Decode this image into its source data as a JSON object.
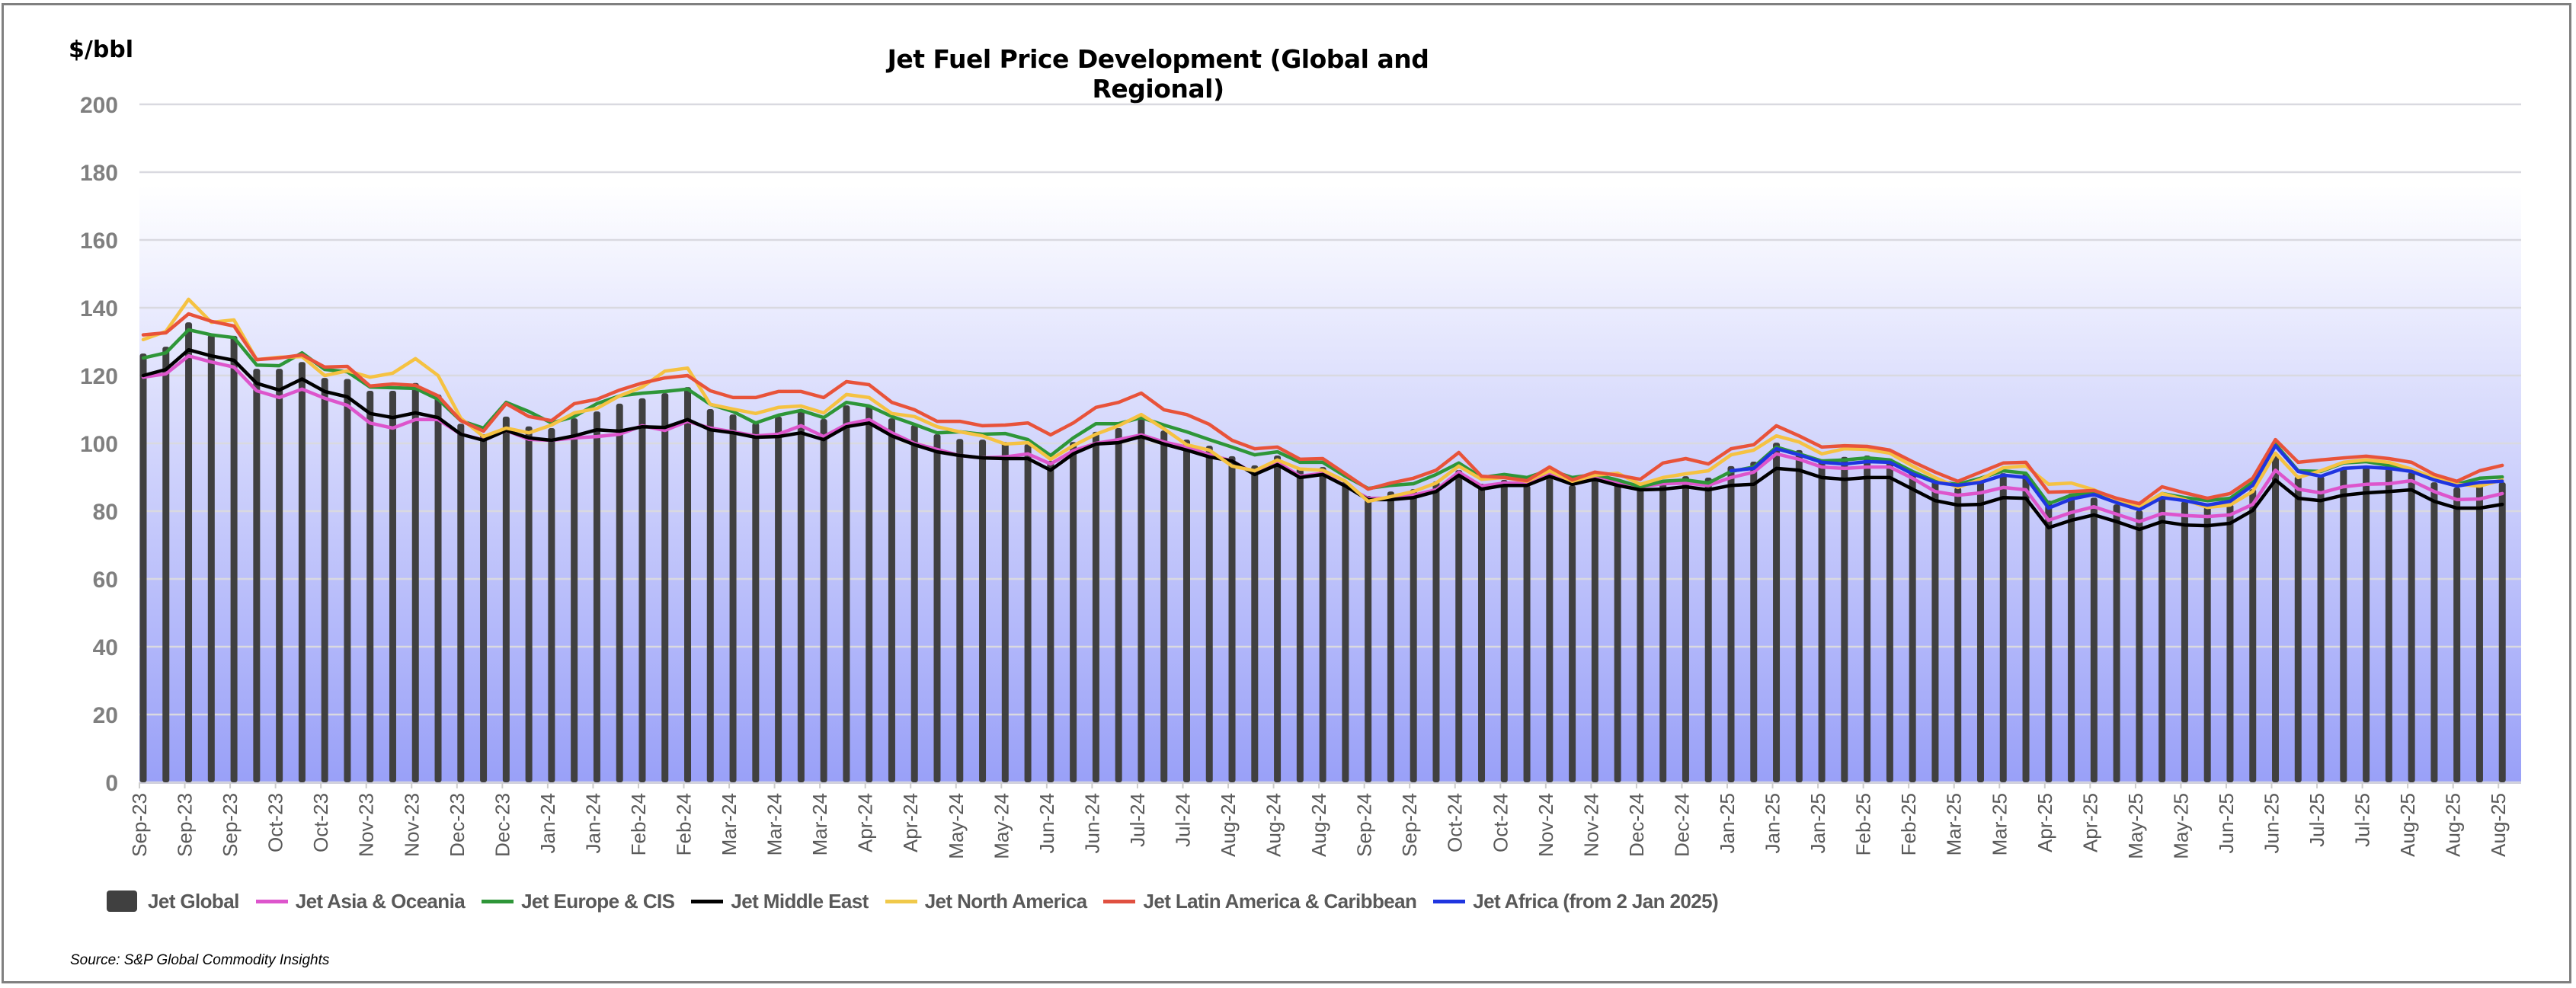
{
  "chart_data": {
    "type": "bar+line",
    "title": "Jet Fuel Price Development (Global and Regional)",
    "ylabel": "$/bbl",
    "xlabel": "",
    "ylim": [
      0,
      200
    ],
    "yticks": [
      0,
      20,
      40,
      60,
      80,
      100,
      120,
      140,
      160,
      180,
      200
    ],
    "grid": true,
    "legend_position": "bottom",
    "source": "Source:  S&P Global Commodity Insights",
    "x_tick_labels": [
      "Sep-23",
      "Sep-23",
      "Sep-23",
      "Oct-23",
      "Oct-23",
      "Nov-23",
      "Nov-23",
      "Dec-23",
      "Dec-23",
      "Jan-24",
      "Jan-24",
      "Feb-24",
      "Feb-24",
      "Mar-24",
      "Mar-24",
      "Mar-24",
      "Apr-24",
      "Apr-24",
      "May-24",
      "May-24",
      "Jun-24",
      "Jun-24",
      "Jul-24",
      "Jul-24",
      "Aug-24",
      "Aug-24",
      "Aug-24",
      "Sep-24",
      "Sep-24",
      "Oct-24",
      "Oct-24",
      "Nov-24",
      "Nov-24",
      "Dec-24",
      "Dec-24",
      "Jan-25",
      "Jan-25",
      "Jan-25",
      "Feb-25",
      "Feb-25",
      "Mar-25",
      "Mar-25",
      "Apr-25",
      "Apr-25",
      "May-25",
      "May-25",
      "Jun-25",
      "Jun-25",
      "Jul-25",
      "Jul-25",
      "Aug-25",
      "Aug-25",
      "Aug-25"
    ],
    "x_tick_every": 2,
    "n_points": 105,
    "series": [
      {
        "name": "Jet Global",
        "kind": "bar",
        "color": "#404040",
        "values": [
          126.5,
          128.5,
          135.7,
          132,
          131.7,
          122,
          122,
          124,
          119.3,
          119,
          115.5,
          115.5,
          117.8,
          114.4,
          105.8,
          102.7,
          107.9,
          105,
          104.5,
          107.4,
          109.4,
          111.7,
          113.3,
          114.8,
          116.6,
          110.1,
          108.5,
          106,
          107.9,
          109.4,
          107.2,
          111.2,
          111.2,
          107.4,
          105.4,
          102.7,
          101.3,
          101.1,
          100.4,
          99.8,
          94.8,
          100.4,
          103.4,
          104.5,
          107.2,
          103.8,
          101.1,
          99.3,
          96.2,
          93.5,
          96.4,
          92.8,
          93,
          88.8,
          84.5,
          85.8,
          86.5,
          88.8,
          92.1,
          88.1,
          89.2,
          87.6,
          89.9,
          87.6,
          89.2,
          88.5,
          86.5,
          89.2,
          90.3,
          89.9,
          93.3,
          94.6,
          100.2,
          98,
          95.3,
          96,
          96.4,
          95.5,
          91.5,
          88.8,
          87,
          88.8,
          91.2,
          91.2,
          83.1,
          85.2,
          84,
          82,
          80.2,
          84,
          82.9,
          81.3,
          82,
          86.5,
          96.4,
          90.3,
          90.3,
          92.6,
          93.3,
          92.6,
          91.5,
          88.5,
          87,
          87.6,
          88.5
        ]
      },
      {
        "name": "Jet Asia & Oceania",
        "kind": "line",
        "color": "#dd55cc",
        "values": [
          119.5,
          120.5,
          125.8,
          124,
          122.5,
          115.5,
          113.5,
          116,
          113.3,
          111.2,
          106,
          104.5,
          107,
          107,
          102.7,
          101,
          103.8,
          101.2,
          100.9,
          101.6,
          102,
          102.7,
          105.2,
          103.8,
          106.5,
          104.5,
          103.4,
          102.2,
          102.7,
          105.2,
          102,
          105.6,
          107,
          103.1,
          100,
          98.2,
          96.4,
          95.7,
          96,
          96.9,
          93.9,
          97.8,
          100,
          101.1,
          102.5,
          100.4,
          98.9,
          96.6,
          94.8,
          91,
          94.4,
          90.3,
          91.2,
          87.4,
          83.8,
          83.8,
          84.7,
          86.3,
          91.5,
          87.4,
          88.3,
          88.3,
          90.8,
          88.5,
          90.1,
          88.3,
          87.2,
          88.1,
          88.3,
          87.6,
          89.9,
          91.5,
          96.9,
          95.3,
          93,
          92.6,
          93,
          93,
          89.7,
          85.8,
          84.7,
          85.4,
          87,
          86.3,
          77.3,
          79.6,
          81.3,
          79.1,
          76.9,
          79.3,
          78.7,
          78.4,
          78.9,
          82,
          92.1,
          86.5,
          85.4,
          87.2,
          87.9,
          88.1,
          89,
          85.8,
          83.4,
          83.6,
          85.2
        ]
      },
      {
        "name": "Jet Europe & CIS",
        "kind": "line",
        "color": "#2e9638",
        "values": [
          125.2,
          126.7,
          133.5,
          132,
          131.2,
          123.1,
          122.9,
          126.7,
          121.8,
          121.1,
          116.6,
          116.4,
          116.2,
          113,
          106.7,
          104.5,
          112.1,
          109.4,
          106,
          107.9,
          111.7,
          114,
          114.8,
          115.3,
          116,
          111.5,
          109.4,
          106,
          108.3,
          109.7,
          107.6,
          112.1,
          111,
          107.9,
          105.6,
          103.1,
          103.4,
          102.7,
          102.9,
          101.1,
          96.4,
          101.6,
          105.8,
          105.8,
          107.6,
          105.4,
          103.4,
          101.1,
          98.9,
          96.6,
          97.5,
          94.4,
          94.4,
          90.3,
          86.7,
          87.6,
          88.1,
          90.8,
          94.2,
          89.9,
          90.8,
          89.9,
          92.1,
          89.9,
          90.8,
          89.2,
          87.2,
          88.8,
          89.2,
          88.3,
          91.7,
          93,
          98.9,
          96.9,
          94.8,
          95.1,
          95.7,
          95.1,
          91.7,
          88.8,
          87.9,
          89.7,
          91.9,
          91.2,
          82.2,
          84.7,
          85.6,
          82.9,
          81.1,
          85.2,
          84,
          83.1,
          83.8,
          88.5,
          99.8,
          91.9,
          91.7,
          94.2,
          94.6,
          93.5,
          92.1,
          89.9,
          87.9,
          89.7,
          90.1
        ]
      },
      {
        "name": "Jet Middle East",
        "kind": "line",
        "color": "#000000",
        "values": [
          120,
          121.8,
          127.6,
          125.8,
          124.5,
          117.7,
          115.7,
          119,
          115.3,
          113.7,
          108.8,
          107.6,
          109,
          107.6,
          102.7,
          100.9,
          103.8,
          101.6,
          100.9,
          102.2,
          104,
          103.6,
          104.9,
          104.7,
          107,
          104,
          103.1,
          101.8,
          102,
          103.1,
          101.1,
          104.9,
          106,
          102.2,
          99.6,
          97.5,
          96.4,
          95.7,
          95.5,
          95.5,
          92.1,
          96.9,
          99.8,
          100.2,
          102,
          99.8,
          98,
          96,
          94.8,
          90.8,
          93.7,
          89.9,
          90.8,
          87.4,
          83.4,
          83.4,
          84,
          85.8,
          90.6,
          86.5,
          87.6,
          87.6,
          90.3,
          87.9,
          89.4,
          87.6,
          86.3,
          86.5,
          87.2,
          86.3,
          87.6,
          87.9,
          92.6,
          92.1,
          89.9,
          89.4,
          89.9,
          89.9,
          86.5,
          83.1,
          81.8,
          82,
          84,
          83.8,
          75.1,
          77.3,
          78.9,
          76.9,
          74.6,
          76.9,
          75.9,
          75.7,
          76.4,
          80.2,
          89.2,
          83.8,
          83.1,
          84.7,
          85.4,
          85.8,
          86.3,
          82.9,
          80.9,
          80.9,
          82
        ]
      },
      {
        "name": "Jet North America",
        "kind": "line",
        "color": "#f5c242",
        "values": [
          130.6,
          133,
          142.5,
          135.7,
          136.4,
          124.7,
          125.4,
          125.6,
          120,
          121.4,
          119.5,
          120.7,
          125,
          120,
          107.4,
          102,
          104.5,
          103.1,
          105.4,
          109,
          110.3,
          114,
          116.6,
          121.3,
          122.2,
          111.5,
          110.1,
          108.8,
          110.6,
          111,
          109,
          114.4,
          113.5,
          108.8,
          107.9,
          104.9,
          103.4,
          102.2,
          99.8,
          100.2,
          95.3,
          99.3,
          102.7,
          105.2,
          108.5,
          104.3,
          99.6,
          98,
          93.3,
          91.9,
          95.1,
          92.4,
          92.1,
          88.8,
          82.9,
          84.3,
          85.8,
          88.3,
          93.3,
          89.4,
          89.9,
          88.8,
          91.9,
          88.8,
          90.6,
          91.2,
          87.9,
          89.9,
          91,
          91.9,
          96.6,
          98,
          102.2,
          100.4,
          96.9,
          98.4,
          98.2,
          97.1,
          93.3,
          89.9,
          87,
          89.4,
          92.8,
          93.3,
          87.9,
          88.3,
          86.3,
          83.4,
          81.3,
          85.2,
          83.4,
          81.1,
          81.8,
          85.8,
          97.1,
          89.9,
          91.9,
          94.4,
          95.1,
          94.4,
          92.4,
          89.9,
          87.9,
          87.4,
          89.2
        ]
      },
      {
        "name": "Jet Latin America & Caribbean",
        "kind": "line",
        "color": "#e8533a",
        "values": [
          132,
          132.6,
          138.2,
          136,
          134.6,
          124.7,
          125.2,
          126.1,
          122.5,
          122.7,
          116.9,
          117.5,
          117.1,
          114,
          106.7,
          103.6,
          111.7,
          107.9,
          106.7,
          111.7,
          113,
          115.7,
          117.8,
          119.3,
          120,
          115.5,
          113.5,
          113.5,
          115.3,
          115.3,
          113.5,
          118.2,
          117.3,
          112.1,
          109.9,
          106.5,
          106.5,
          105.2,
          105.4,
          106,
          102.5,
          106,
          110.6,
          112.1,
          114.8,
          109.9,
          108.5,
          105.6,
          100.9,
          98.4,
          98.9,
          95.3,
          95.5,
          91,
          86.5,
          88.3,
          89.7,
          92.1,
          97.3,
          90.3,
          89.9,
          89,
          93,
          89.2,
          91.5,
          90.6,
          89.4,
          94.2,
          95.5,
          93.9,
          98.4,
          99.6,
          105.2,
          102.2,
          98.9,
          99.3,
          99.1,
          98,
          94.6,
          91.5,
          88.8,
          91.5,
          94.2,
          94.4,
          85.6,
          85.8,
          86.1,
          83.8,
          82.2,
          87.2,
          85.4,
          83.8,
          85.2,
          89.7,
          101.1,
          94.4,
          95.1,
          95.7,
          96.2,
          95.5,
          94.4,
          90.8,
          88.8,
          91.9,
          93.5
        ]
      },
      {
        "name": "Jet Africa (from 2 Jan 2025)",
        "kind": "line",
        "color": "#1f35e0",
        "values": [
          null,
          null,
          null,
          null,
          null,
          null,
          null,
          null,
          null,
          null,
          null,
          null,
          null,
          null,
          null,
          null,
          null,
          null,
          null,
          null,
          null,
          null,
          null,
          null,
          null,
          null,
          null,
          null,
          null,
          null,
          null,
          null,
          null,
          null,
          null,
          null,
          null,
          null,
          null,
          null,
          null,
          null,
          null,
          null,
          null,
          null,
          null,
          null,
          null,
          null,
          null,
          null,
          null,
          null,
          null,
          null,
          null,
          null,
          null,
          null,
          null,
          null,
          null,
          null,
          null,
          null,
          null,
          null,
          null,
          null,
          91.9,
          92.6,
          98.4,
          96.6,
          94.4,
          93.9,
          94.6,
          94.4,
          91,
          88.5,
          87.6,
          88.5,
          90.6,
          89.9,
          80.9,
          83.6,
          84.9,
          82.5,
          80.4,
          84,
          83.1,
          81.8,
          82.9,
          87.6,
          99.3,
          91.7,
          90.3,
          92.6,
          93,
          92.6,
          91.7,
          89.2,
          87.4,
          88.5,
          88.8
        ]
      }
    ]
  },
  "legend": [
    {
      "label": "Jet Global",
      "swatch": "bar",
      "color": "#404040"
    },
    {
      "label": "Jet Asia & Oceania",
      "swatch": "line",
      "color": "#dd55cc"
    },
    {
      "label": "Jet Europe & CIS",
      "swatch": "line",
      "color": "#2e9638"
    },
    {
      "label": "Jet Middle East",
      "swatch": "line",
      "color": "#000000"
    },
    {
      "label": "Jet North America",
      "swatch": "line",
      "color": "#f0c94a"
    },
    {
      "label": "Jet Latin America & Caribbean",
      "swatch": "line",
      "color": "#e05040"
    },
    {
      "label": "Jet Africa (from 2 Jan 2025)",
      "swatch": "line",
      "color": "#1f35e0"
    }
  ],
  "colors": {
    "plot_bg_bottom": "#99a0f8",
    "plot_bg_top": "#ffffff",
    "gridline": "#d9d9e0",
    "axis_text": "#7f7f7f",
    "frame": "#808080"
  }
}
